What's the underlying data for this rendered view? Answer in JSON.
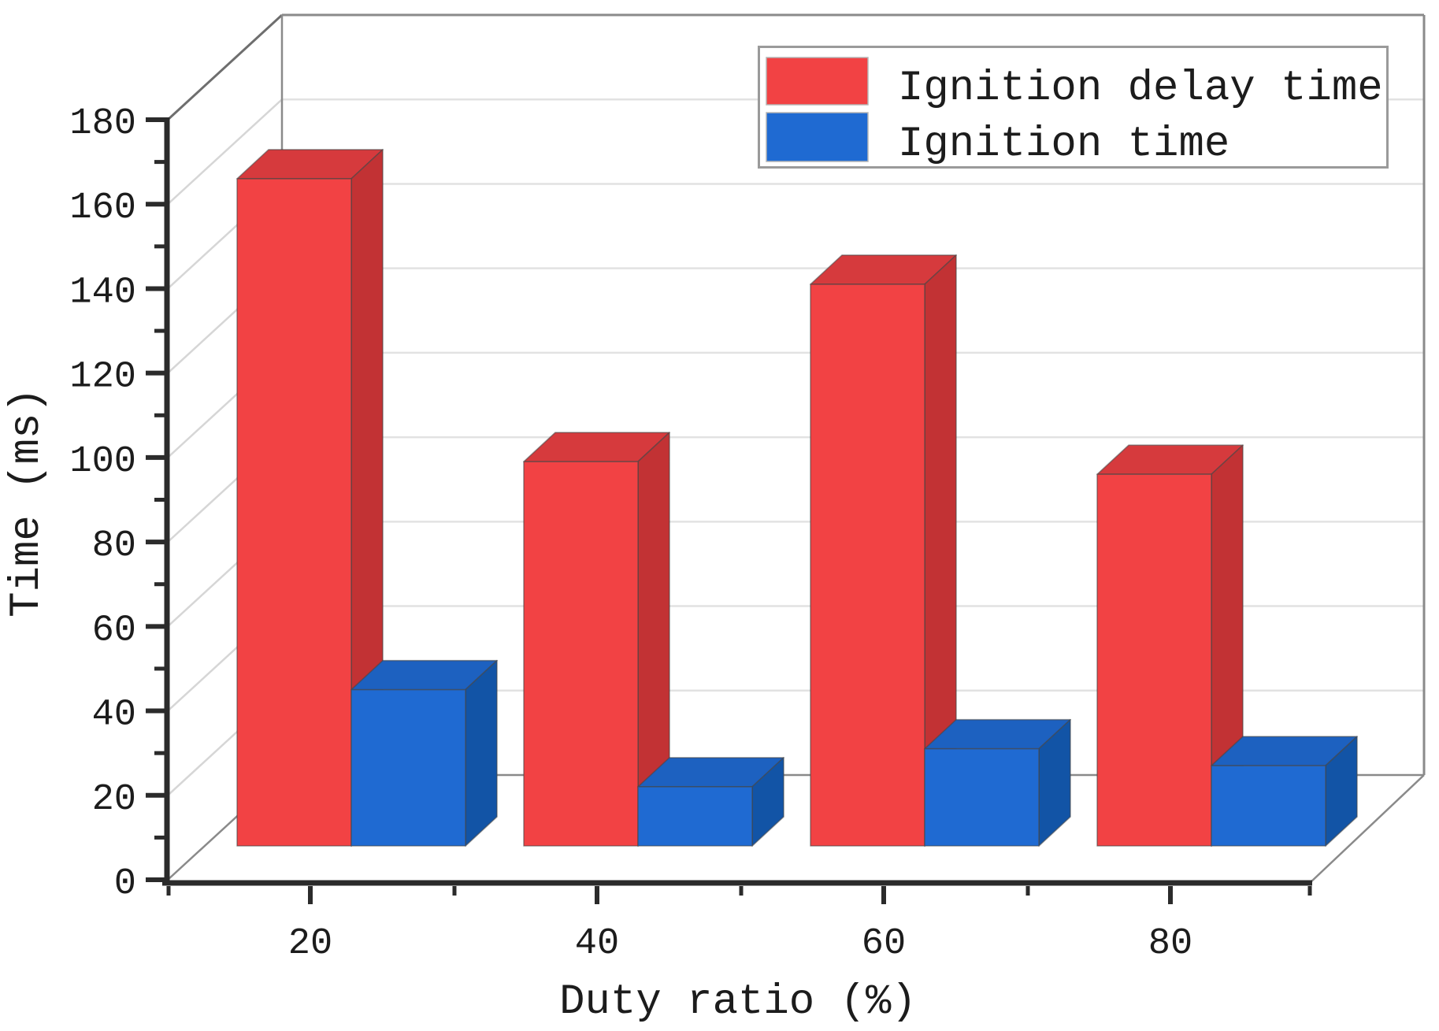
{
  "chart_data": {
    "type": "bar",
    "projection": "3d-oblique",
    "title": "",
    "xlabel": "Duty ratio (%)",
    "ylabel": "Time (ms)",
    "categories": [
      "20",
      "40",
      "60",
      "80"
    ],
    "series": [
      {
        "name": "Ignition delay time",
        "values": [
          158,
          91,
          133,
          88
        ],
        "color": "#f24244",
        "color_top": "#d63a3d",
        "color_side": "#c23234"
      },
      {
        "name": "Ignition time",
        "values": [
          37,
          14,
          23,
          19
        ],
        "color": "#1f6ad2",
        "color_top": "#1d61c0",
        "color_side": "#1254a6"
      }
    ],
    "ylim": [
      0,
      180
    ],
    "ytick_step": 20,
    "y_minor_step": 10,
    "grid": true,
    "legend_position": "top-right"
  },
  "style_colors": {
    "axis": "#2b2b2b",
    "frame": "#8a8a8a",
    "grid": "#e2e2e2",
    "wall_grid": "#d6d6d6",
    "text": "#1c1c1c",
    "legend_border": "#9a9a9a",
    "background": "#ffffff"
  }
}
